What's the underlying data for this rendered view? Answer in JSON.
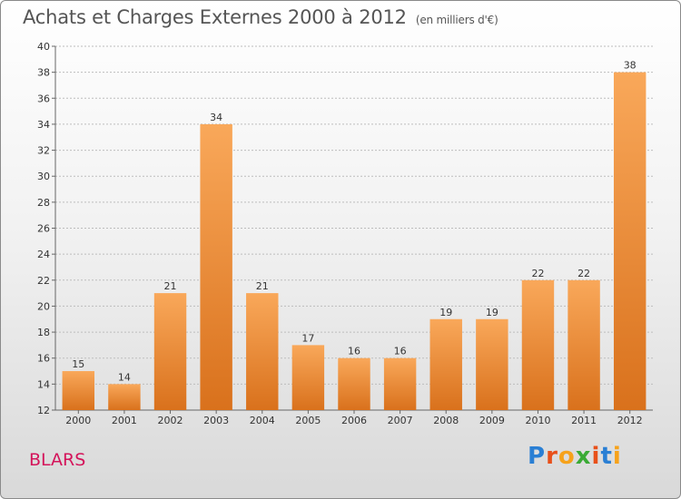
{
  "title": "Achats et Charges Externes 2000 à 2012",
  "subtitle": "(en milliers d'€)",
  "location": "BLARS",
  "logo": {
    "letters": [
      "P",
      "r",
      "o",
      "x",
      "i",
      "t",
      "i"
    ],
    "colors": [
      "#2a7fd4",
      "#e8501a",
      "#f6a21b",
      "#3aaa35",
      "#e8501a",
      "#2a7fd4",
      "#f6a21b"
    ]
  },
  "colors": {
    "bar_light": "#f9a85a",
    "bar_dark": "#d9711c",
    "grid": "#bdbdbd"
  },
  "chart_data": {
    "type": "bar",
    "categories": [
      "2000",
      "2001",
      "2002",
      "2003",
      "2004",
      "2005",
      "2006",
      "2007",
      "2008",
      "2009",
      "2010",
      "2011",
      "2012"
    ],
    "values": [
      15,
      14,
      21,
      34,
      21,
      17,
      16,
      16,
      19,
      19,
      22,
      22,
      38
    ],
    "ylim": [
      12,
      40
    ],
    "yticks": [
      12,
      14,
      16,
      18,
      20,
      22,
      24,
      26,
      28,
      30,
      32,
      34,
      36,
      38,
      40
    ],
    "grid": true
  }
}
